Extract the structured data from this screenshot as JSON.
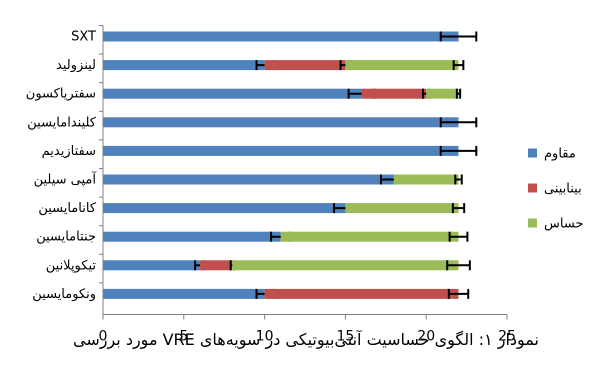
{
  "caption": "نمودار ۱: الگوی حساسیت آنتی‌بیوتیکی در سویه‌های VRE مورد بررسی",
  "chart_data": {
    "type": "bar",
    "orientation": "horizontal",
    "stacked": true,
    "title": "",
    "xlabel": "",
    "ylabel": "",
    "xlim": [
      0,
      25
    ],
    "x_ticks": [
      "0",
      "5",
      "10",
      "15",
      "20",
      "25"
    ],
    "grid": false,
    "legend_position": "right",
    "categories": [
      "SXT",
      "لینزولید",
      "سفتریاکسون",
      "کلیندامایسین",
      "سفتازیدیم",
      "آمپی سیلین",
      "کانامایسین",
      "جنتامایسین",
      "تیکوپلانین",
      "ونکومایسین"
    ],
    "series": [
      {
        "name": "مقاوم",
        "color": "#4f81bd",
        "values": [
          22,
          10,
          16,
          22,
          22,
          18,
          15,
          11,
          6,
          10
        ],
        "errors": [
          1.1,
          0.5,
          0.8,
          1.1,
          1.1,
          0.8,
          0.7,
          0.6,
          0.3,
          0.5
        ]
      },
      {
        "name": "بینابینی",
        "color": "#c0504d",
        "values": [
          0,
          5,
          4,
          0,
          0,
          0,
          0,
          0,
          2,
          12
        ],
        "errors": [
          0,
          0.3,
          0.2,
          0,
          0,
          0,
          0,
          0,
          0.1,
          0.6
        ]
      },
      {
        "name": "حساس",
        "color": "#9bbb59",
        "values": [
          0,
          7,
          2,
          0,
          0,
          4,
          7,
          11,
          14,
          0
        ],
        "errors": [
          0,
          0.3,
          0.1,
          0,
          0,
          0.2,
          0.35,
          0.55,
          0.7,
          0
        ]
      }
    ]
  }
}
